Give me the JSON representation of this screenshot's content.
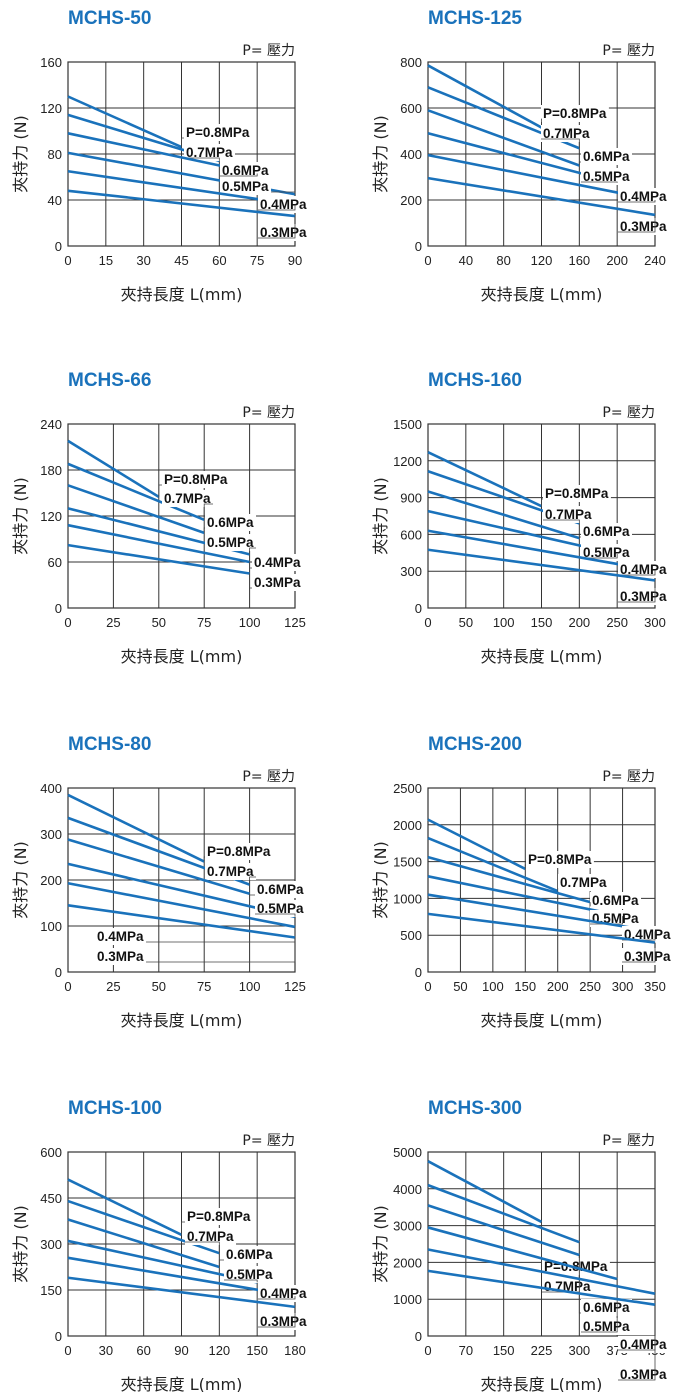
{
  "colors": {
    "accent": "#1a72bb",
    "grid": "#333333"
  },
  "pressure_label": "P= 壓力",
  "xlabel": "夾持長度 L(mm)",
  "ylabel": "夾持力 (N)",
  "chart_data": [
    {
      "type": "line",
      "title": "MCHS-50",
      "x_ticks": [
        "0",
        "15",
        "30",
        "45",
        "60",
        "75",
        "90"
      ],
      "y_ticks": [
        "0",
        "40",
        "80",
        "120",
        "160"
      ],
      "xlim": [
        0,
        90
      ],
      "ylim": [
        0,
        160
      ],
      "series": [
        {
          "name": "P=0.8MPa",
          "x": [
            0,
            45
          ],
          "y": [
            130,
            86
          ]
        },
        {
          "name": "0.7MPa",
          "x": [
            0,
            60
          ],
          "y": [
            114,
            74
          ]
        },
        {
          "name": "0.6MPa",
          "x": [
            0,
            75
          ],
          "y": [
            98,
            63
          ]
        },
        {
          "name": "0.5MPa",
          "x": [
            0,
            90
          ],
          "y": [
            81,
            45
          ]
        },
        {
          "name": "0.4MPa",
          "x": [
            0,
            90
          ],
          "y": [
            65,
            36
          ]
        },
        {
          "name": "0.3MPa",
          "x": [
            0,
            90
          ],
          "y": [
            48,
            26
          ]
        }
      ]
    },
    {
      "type": "line",
      "title": "MCHS-125",
      "x_ticks": [
        "0",
        "40",
        "80",
        "120",
        "160",
        "200",
        "240"
      ],
      "y_ticks": [
        "0",
        "200",
        "400",
        "600",
        "800"
      ],
      "xlim": [
        0,
        240
      ],
      "ylim": [
        0,
        800
      ],
      "series": [
        {
          "name": "P=0.8MPa",
          "x": [
            0,
            120
          ],
          "y": [
            785,
            515
          ]
        },
        {
          "name": "0.7MPa",
          "x": [
            0,
            160
          ],
          "y": [
            690,
            425
          ]
        },
        {
          "name": "0.6MPa",
          "x": [
            0,
            160
          ],
          "y": [
            590,
            350
          ]
        },
        {
          "name": "0.5MPa",
          "x": [
            0,
            200
          ],
          "y": [
            490,
            275
          ]
        },
        {
          "name": "0.4MPa",
          "x": [
            0,
            240
          ],
          "y": [
            395,
            200
          ]
        },
        {
          "name": "0.3MPa",
          "x": [
            0,
            240
          ],
          "y": [
            295,
            135
          ]
        }
      ]
    },
    {
      "type": "line",
      "title": "MCHS-66",
      "x_ticks": [
        "0",
        "25",
        "50",
        "75",
        "100",
        "125"
      ],
      "y_ticks": [
        "0",
        "60",
        "120",
        "180",
        "240"
      ],
      "xlim": [
        0,
        125
      ],
      "ylim": [
        0,
        240
      ],
      "series": [
        {
          "name": "P=0.8MPa",
          "x": [
            0,
            50
          ],
          "y": [
            218,
            145
          ]
        },
        {
          "name": "0.7MPa",
          "x": [
            0,
            75
          ],
          "y": [
            188,
            115
          ]
        },
        {
          "name": "0.6MPa",
          "x": [
            0,
            75
          ],
          "y": [
            160,
            98
          ]
        },
        {
          "name": "0.5MPa",
          "x": [
            0,
            100
          ],
          "y": [
            130,
            70
          ]
        },
        {
          "name": "0.4MPa",
          "x": [
            0,
            100
          ],
          "y": [
            108,
            60
          ]
        },
        {
          "name": "0.3MPa",
          "x": [
            0,
            100
          ],
          "y": [
            82,
            45
          ]
        }
      ]
    },
    {
      "type": "line",
      "title": "MCHS-160",
      "x_ticks": [
        "0",
        "50",
        "100",
        "150",
        "200",
        "250",
        "300"
      ],
      "y_ticks": [
        "0",
        "300",
        "600",
        "900",
        "1200",
        "1500"
      ],
      "xlim": [
        0,
        300
      ],
      "ylim": [
        0,
        1500
      ],
      "series": [
        {
          "name": "P=0.8MPa",
          "x": [
            0,
            150
          ],
          "y": [
            1270,
            830
          ]
        },
        {
          "name": "0.7MPa",
          "x": [
            0,
            200
          ],
          "y": [
            1115,
            690
          ]
        },
        {
          "name": "0.6MPa",
          "x": [
            0,
            200
          ],
          "y": [
            950,
            570
          ]
        },
        {
          "name": "0.5MPa",
          "x": [
            0,
            250
          ],
          "y": [
            790,
            440
          ]
        },
        {
          "name": "0.4MPa",
          "x": [
            0,
            300
          ],
          "y": [
            630,
            305
          ]
        },
        {
          "name": "0.3MPa",
          "x": [
            0,
            300
          ],
          "y": [
            475,
            225
          ]
        }
      ]
    },
    {
      "type": "line",
      "title": "MCHS-80",
      "x_ticks": [
        "0",
        "25",
        "50",
        "75",
        "100",
        "125"
      ],
      "y_ticks": [
        "0",
        "100",
        "200",
        "300",
        "400"
      ],
      "xlim": [
        0,
        125
      ],
      "ylim": [
        0,
        400
      ],
      "series": [
        {
          "name": "P=0.8MPa",
          "x": [
            0,
            75
          ],
          "y": [
            385,
            240
          ]
        },
        {
          "name": "0.7MPa",
          "x": [
            0,
            100
          ],
          "y": [
            335,
            190
          ]
        },
        {
          "name": "0.6MPa",
          "x": [
            0,
            100
          ],
          "y": [
            288,
            170
          ]
        },
        {
          "name": "0.5MPa",
          "x": [
            0,
            125
          ],
          "y": [
            235,
            120
          ]
        },
        {
          "name": "0.4MPa",
          "x": [
            0,
            125
          ],
          "y": [
            193,
            98
          ]
        },
        {
          "name": "0.3MPa",
          "x": [
            0,
            125
          ],
          "y": [
            145,
            75
          ]
        }
      ]
    },
    {
      "type": "line",
      "title": "MCHS-200",
      "x_ticks": [
        "0",
        "50",
        "100",
        "150",
        "200",
        "250",
        "300",
        "350"
      ],
      "y_ticks": [
        "0",
        "500",
        "1000",
        "1500",
        "2000",
        "2500"
      ],
      "xlim": [
        0,
        350
      ],
      "ylim": [
        0,
        2500
      ],
      "series": [
        {
          "name": "P=0.8MPa",
          "x": [
            0,
            150
          ],
          "y": [
            2070,
            1400
          ]
        },
        {
          "name": "0.7MPa",
          "x": [
            0,
            200
          ],
          "y": [
            1820,
            1100
          ]
        },
        {
          "name": "0.6MPa",
          "x": [
            0,
            250
          ],
          "y": [
            1560,
            950
          ]
        },
        {
          "name": "0.5MPa",
          "x": [
            0,
            300
          ],
          "y": [
            1300,
            760
          ]
        },
        {
          "name": "0.4MPa",
          "x": [
            0,
            350
          ],
          "y": [
            1050,
            550
          ]
        },
        {
          "name": "0.3MPa",
          "x": [
            0,
            350
          ],
          "y": [
            790,
            400
          ]
        }
      ]
    },
    {
      "type": "line",
      "title": "MCHS-100",
      "x_ticks": [
        "0",
        "30",
        "60",
        "90",
        "120",
        "150",
        "180"
      ],
      "y_ticks": [
        "0",
        "150",
        "300",
        "450",
        "600"
      ],
      "xlim": [
        0,
        180
      ],
      "ylim": [
        0,
        600
      ],
      "series": [
        {
          "name": "P=0.8MPa",
          "x": [
            0,
            90
          ],
          "y": [
            510,
            330
          ]
        },
        {
          "name": "0.7MPa",
          "x": [
            0,
            120
          ],
          "y": [
            440,
            270
          ]
        },
        {
          "name": "0.6MPa",
          "x": [
            0,
            120
          ],
          "y": [
            380,
            225
          ]
        },
        {
          "name": "0.5MPa",
          "x": [
            0,
            150
          ],
          "y": [
            310,
            175
          ]
        },
        {
          "name": "0.4MPa",
          "x": [
            0,
            180
          ],
          "y": [
            255,
            130
          ]
        },
        {
          "name": "0.3MPa",
          "x": [
            0,
            180
          ],
          "y": [
            190,
            95
          ]
        }
      ]
    },
    {
      "type": "line",
      "title": "MCHS-300",
      "x_ticks": [
        "0",
        "70",
        "150",
        "225",
        "300",
        "375",
        "450"
      ],
      "y_ticks": [
        "0",
        "1000",
        "2000",
        "3000",
        "4000",
        "5000"
      ],
      "xlim": [
        0,
        450
      ],
      "ylim": [
        0,
        5000
      ],
      "series": [
        {
          "name": "P=0.8MPa",
          "x": [
            0,
            225
          ],
          "y": [
            4750,
            3100
          ]
        },
        {
          "name": "0.7MPa",
          "x": [
            0,
            300
          ],
          "y": [
            4100,
            2550
          ]
        },
        {
          "name": "0.6MPa",
          "x": [
            0,
            300
          ],
          "y": [
            3550,
            2200
          ]
        },
        {
          "name": "0.5MPa",
          "x": [
            0,
            375
          ],
          "y": [
            2950,
            1550
          ]
        },
        {
          "name": "0.4MPa",
          "x": [
            0,
            450
          ],
          "y": [
            2350,
            1150
          ]
        },
        {
          "name": "0.3MPa",
          "x": [
            0,
            450
          ],
          "y": [
            1770,
            850
          ]
        }
      ]
    }
  ]
}
